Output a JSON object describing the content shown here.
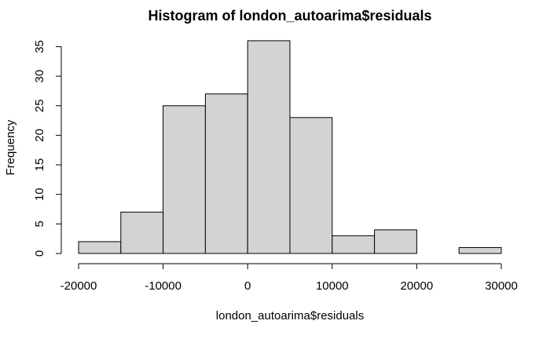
{
  "chart_data": {
    "type": "bar",
    "title": "Histogram of london_autoarima$residuals",
    "xlabel": "london_autoarima$residuals",
    "ylabel": "Frequency",
    "bins": [
      {
        "from": -20000,
        "to": -15000,
        "count": 2
      },
      {
        "from": -15000,
        "to": -10000,
        "count": 7
      },
      {
        "from": -10000,
        "to": -5000,
        "count": 25
      },
      {
        "from": -5000,
        "to": 0,
        "count": 27
      },
      {
        "from": 0,
        "to": 5000,
        "count": 36
      },
      {
        "from": 5000,
        "to": 10000,
        "count": 23
      },
      {
        "from": 10000,
        "to": 15000,
        "count": 3
      },
      {
        "from": 15000,
        "to": 20000,
        "count": 4
      },
      {
        "from": 20000,
        "to": 25000,
        "count": 0
      },
      {
        "from": 25000,
        "to": 30000,
        "count": 1
      }
    ],
    "xlim": [
      -20000,
      30000
    ],
    "ylim": [
      0,
      36
    ],
    "xticks": [
      -20000,
      -10000,
      0,
      10000,
      20000,
      30000
    ],
    "yticks": [
      0,
      5,
      10,
      15,
      20,
      25,
      30,
      35
    ],
    "xtick_labels": [
      "-20000",
      "-10000",
      "0",
      "10000",
      "20000",
      "30000"
    ],
    "ytick_labels": [
      "0",
      "5",
      "10",
      "15",
      "20",
      "25",
      "30",
      "35"
    ],
    "bar_color": "#d3d3d3",
    "grid": false,
    "legend": "none"
  }
}
